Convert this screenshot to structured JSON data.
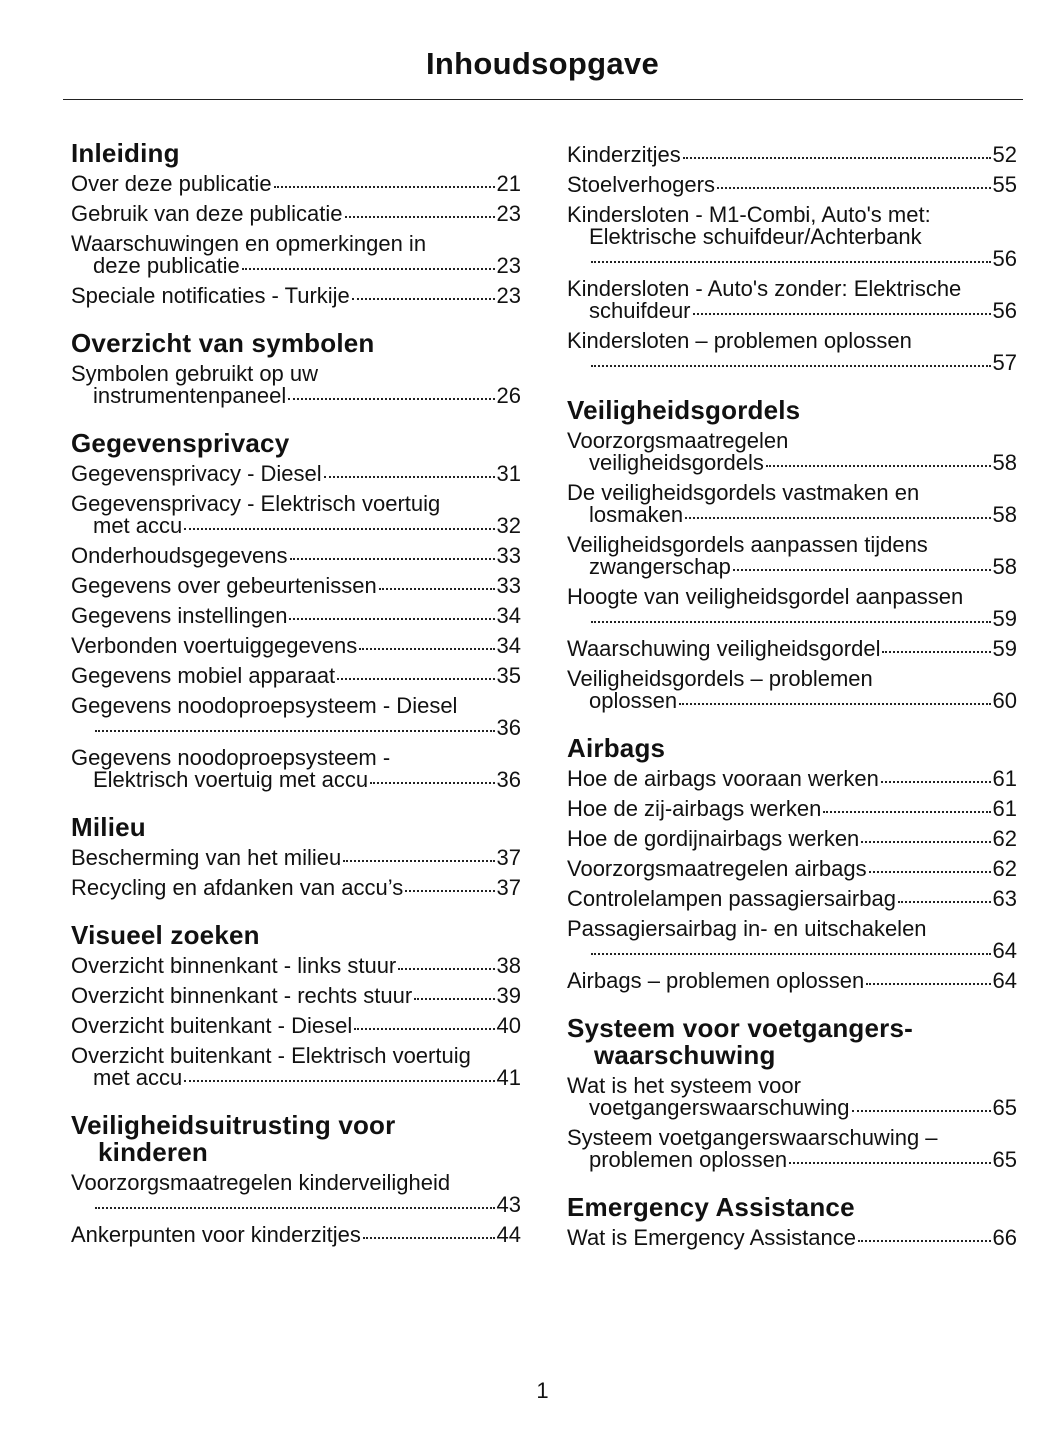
{
  "title": "Inhoudsopgave",
  "page_number": "1",
  "columns": [
    [
      {
        "heading": [
          "Inleiding"
        ],
        "entries": [
          {
            "lines": [
              "Over deze publicatie"
            ],
            "page": "21"
          },
          {
            "lines": [
              "Gebruik van deze publicatie"
            ],
            "page": "23"
          },
          {
            "lines": [
              "Waarschuwingen en opmerkingen in",
              "deze publicatie"
            ],
            "page": "23"
          },
          {
            "lines": [
              "Speciale notificaties - Turkije"
            ],
            "page": "23"
          }
        ]
      },
      {
        "heading": [
          "Overzicht van symbolen"
        ],
        "entries": [
          {
            "lines": [
              "Symbolen gebruikt op uw",
              "instrumentenpaneel"
            ],
            "page": "26"
          }
        ]
      },
      {
        "heading": [
          "Gegevensprivacy"
        ],
        "entries": [
          {
            "lines": [
              "Gegevensprivacy - Diesel"
            ],
            "page": "31"
          },
          {
            "lines": [
              "Gegevensprivacy - Elektrisch voertuig",
              "met accu"
            ],
            "page": "32"
          },
          {
            "lines": [
              "Onderhoudsgegevens"
            ],
            "page": "33"
          },
          {
            "lines": [
              "Gegevens over gebeurtenissen"
            ],
            "page": "33"
          },
          {
            "lines": [
              "Gegevens instellingen"
            ],
            "page": "34"
          },
          {
            "lines": [
              "Verbonden voertuiggegevens"
            ],
            "page": "34"
          },
          {
            "lines": [
              "Gegevens mobiel apparaat"
            ],
            "page": "35"
          },
          {
            "lines": [
              "Gegevens noodoproepsysteem - Diesel",
              ""
            ],
            "page": "36"
          },
          {
            "lines": [
              "Gegevens noodoproepsysteem -",
              "Elektrisch voertuig met accu"
            ],
            "page": "36"
          }
        ]
      },
      {
        "heading": [
          "Milieu"
        ],
        "entries": [
          {
            "lines": [
              "Bescherming van het milieu"
            ],
            "page": "37"
          },
          {
            "lines": [
              "Recycling en afdanken van accu’s"
            ],
            "page": "37"
          }
        ]
      },
      {
        "heading": [
          "Visueel zoeken"
        ],
        "entries": [
          {
            "lines": [
              "Overzicht binnenkant - links stuur"
            ],
            "page": "38"
          },
          {
            "lines": [
              "Overzicht binnenkant - rechts stuur"
            ],
            "page": "39"
          },
          {
            "lines": [
              "Overzicht buitenkant - Diesel"
            ],
            "page": "40"
          },
          {
            "lines": [
              "Overzicht buitenkant - Elektrisch voertuig",
              "met accu"
            ],
            "page": "41"
          }
        ]
      },
      {
        "heading": [
          "Veiligheidsuitrusting voor",
          "kinderen"
        ],
        "entries": [
          {
            "lines": [
              "Voorzorgsmaatregelen kinderveiligheid",
              ""
            ],
            "page": "43"
          },
          {
            "lines": [
              "Ankerpunten voor kinderzitjes"
            ],
            "page": "44"
          }
        ]
      }
    ],
    [
      {
        "heading": [],
        "entries": [
          {
            "lines": [
              "Kinderzitjes"
            ],
            "page": "52"
          },
          {
            "lines": [
              "Stoelverhogers"
            ],
            "page": "55"
          },
          {
            "lines": [
              "Kindersloten - M1-Combi, Auto's met:",
              "Elektrische schuifdeur/Achterbank",
              ""
            ],
            "page": "56"
          },
          {
            "lines": [
              "Kindersloten - Auto's zonder: Elektrische",
              "schuifdeur"
            ],
            "page": "56"
          },
          {
            "lines": [
              "Kindersloten – problemen oplossen",
              ""
            ],
            "page": "57"
          }
        ]
      },
      {
        "heading": [
          "Veiligheidsgordels"
        ],
        "entries": [
          {
            "lines": [
              "Voorzorgsmaatregelen",
              "veiligheidsgordels"
            ],
            "page": "58"
          },
          {
            "lines": [
              "De veiligheidsgordels vastmaken en",
              "losmaken"
            ],
            "page": "58"
          },
          {
            "lines": [
              "Veiligheidsgordels aanpassen tijdens",
              "zwangerschap"
            ],
            "page": "58"
          },
          {
            "lines": [
              "Hoogte van veiligheidsgordel aanpassen",
              ""
            ],
            "page": "59"
          },
          {
            "lines": [
              "Waarschuwing veiligheidsgordel"
            ],
            "page": "59"
          },
          {
            "lines": [
              "Veiligheidsgordels – problemen",
              "oplossen"
            ],
            "page": "60"
          }
        ]
      },
      {
        "heading": [
          "Airbags"
        ],
        "entries": [
          {
            "lines": [
              "Hoe de airbags vooraan werken"
            ],
            "page": "61"
          },
          {
            "lines": [
              "Hoe de zij-airbags werken"
            ],
            "page": "61"
          },
          {
            "lines": [
              "Hoe de gordijnairbags werken"
            ],
            "page": "62"
          },
          {
            "lines": [
              "Voorzorgsmaatregelen airbags"
            ],
            "page": "62"
          },
          {
            "lines": [
              "Controlelampen passagiersairbag"
            ],
            "page": "63"
          },
          {
            "lines": [
              "Passagiersairbag in- en uitschakelen",
              ""
            ],
            "page": "64"
          },
          {
            "lines": [
              "Airbags – problemen oplossen"
            ],
            "page": "64"
          }
        ]
      },
      {
        "heading": [
          "Systeem voor voetgangers-",
          "waarschuwing"
        ],
        "entries": [
          {
            "lines": [
              "Wat is het systeem voor",
              "voetgangerswaarschuwing"
            ],
            "page": "65"
          },
          {
            "lines": [
              "Systeem voetgangerswaarschuwing –",
              "problemen oplossen"
            ],
            "page": "65"
          }
        ]
      },
      {
        "heading": [
          "Emergency Assistance"
        ],
        "entries": [
          {
            "lines": [
              "Wat is Emergency Assistance"
            ],
            "page": "66"
          }
        ]
      }
    ]
  ]
}
